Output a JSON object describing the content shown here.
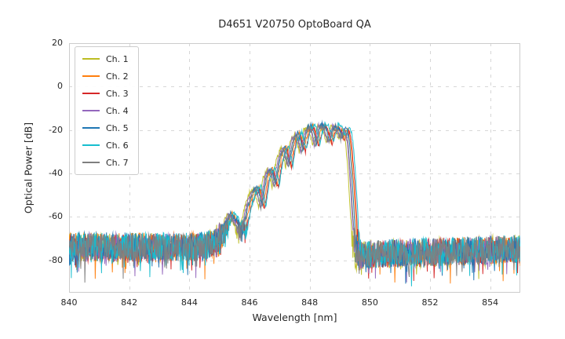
{
  "chart_data": {
    "type": "line",
    "title": "D4651 V20750 OptoBoard QA",
    "xlabel": "Wavelength [nm]",
    "ylabel": "Optical Power [dB]",
    "xlim": [
      840,
      855
    ],
    "ylim": [
      -95,
      20
    ],
    "xticks": [
      840,
      842,
      844,
      846,
      848,
      850,
      852,
      854
    ],
    "yticks": [
      20,
      0,
      -20,
      -40,
      -60,
      -80
    ],
    "grid": true,
    "grid_style": "dashed",
    "grid_color": "#cccccc",
    "spine_color": "#cccccc",
    "legend_position": "upper-left",
    "noise_floor_db": -75,
    "peak_power_db": -18,
    "peak_wavelength_nm": 848.4,
    "series": [
      {
        "name": "Ch. 1",
        "color": "#bcbd22",
        "wavelength_shift_nm": -0.1,
        "power_offset_db": 0.0
      },
      {
        "name": "Ch. 2",
        "color": "#ff7f0e",
        "wavelength_shift_nm": 0.06,
        "power_offset_db": 0.5
      },
      {
        "name": "Ch. 3",
        "color": "#d62728",
        "wavelength_shift_nm": 0.1,
        "power_offset_db": -0.5
      },
      {
        "name": "Ch. 4",
        "color": "#9467bd",
        "wavelength_shift_nm": -0.05,
        "power_offset_db": 0.3
      },
      {
        "name": "Ch. 5",
        "color": "#1f77b4",
        "wavelength_shift_nm": 0.02,
        "power_offset_db": 0.8
      },
      {
        "name": "Ch. 6",
        "color": "#17becf",
        "wavelength_shift_nm": 0.14,
        "power_offset_db": 1.0
      },
      {
        "name": "Ch. 7",
        "color": "#7f7f7f",
        "wavelength_shift_nm": -0.02,
        "power_offset_db": -0.3
      }
    ],
    "spectral_envelope_points": [
      [
        840.0,
        -74
      ],
      [
        844.3,
        -74
      ],
      [
        844.9,
        -72
      ],
      [
        845.15,
        -66
      ],
      [
        845.35,
        -59
      ],
      [
        845.55,
        -63
      ],
      [
        845.75,
        -68
      ],
      [
        845.95,
        -55
      ],
      [
        846.1,
        -49
      ],
      [
        846.25,
        -47
      ],
      [
        846.4,
        -56
      ],
      [
        846.55,
        -42
      ],
      [
        846.7,
        -38
      ],
      [
        846.85,
        -46
      ],
      [
        847.0,
        -33
      ],
      [
        847.15,
        -28
      ],
      [
        847.3,
        -37
      ],
      [
        847.45,
        -25
      ],
      [
        847.6,
        -22
      ],
      [
        847.75,
        -30
      ],
      [
        847.9,
        -20
      ],
      [
        848.05,
        -18.5
      ],
      [
        848.2,
        -27
      ],
      [
        848.35,
        -18
      ],
      [
        848.5,
        -19
      ],
      [
        848.65,
        -26
      ],
      [
        848.8,
        -18.5
      ],
      [
        848.95,
        -20
      ],
      [
        849.05,
        -24
      ],
      [
        849.2,
        -19.5
      ],
      [
        849.3,
        -26
      ],
      [
        849.4,
        -45
      ],
      [
        849.5,
        -70
      ],
      [
        849.6,
        -78
      ],
      [
        850.5,
        -77
      ],
      [
        855.0,
        -75
      ]
    ]
  }
}
